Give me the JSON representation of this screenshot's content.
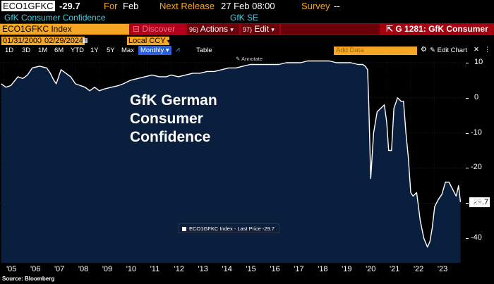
{
  "header": {
    "ticker": "ECO1GFKC",
    "last_value": "-29.7",
    "for_label": "For",
    "for_period": "Feb",
    "next_release_label": "Next Release",
    "next_release_value": "27 Feb 08:00",
    "survey_label": "Survey",
    "survey_value": "--",
    "description": "GfK Consumer Confidence",
    "source": "GfK SE"
  },
  "toolbar": {
    "security_input": "ECO1GFKC Index",
    "discover_label": "Discover",
    "actions_prefix": "96)",
    "actions_label": "Actions",
    "edit_prefix": "97)",
    "edit_label": "Edit",
    "page_title": "G 1281: GfK Consumer"
  },
  "range_bar": {
    "start_date": "01/31/2000",
    "end_date": "02/29/2024",
    "currency": "Local CCY"
  },
  "period_bar": {
    "periods": [
      "1D",
      "3D",
      "1M",
      "6M",
      "YTD",
      "1Y",
      "5Y",
      "Max"
    ],
    "frequency": "Monthly",
    "table_label": "Table",
    "add_data_placeholder": "Add Data",
    "edit_chart_label": "Edit Chart"
  },
  "annotate_label": "Annotate",
  "overlay_title": [
    "GfK German",
    "Consumer",
    "Confidence"
  ],
  "legend_label": "ECO1GFKC Index - Last Price -29.7",
  "source_note": "Source: Bloomberg",
  "colors": {
    "background": "#0a1f3d",
    "line": "#ffffff",
    "accent_orange": "#f5a623",
    "toolbar_red": "#a4000e"
  },
  "chart_data": {
    "type": "area",
    "ylim": [
      -47,
      12
    ],
    "yticks": [
      10,
      0,
      -10,
      -20,
      -30,
      -40
    ],
    "last_value": -29.7,
    "x_tick_labels": [
      "'05",
      "'06",
      "'07",
      "'08",
      "'09",
      "'10",
      "'11",
      "'12",
      "'13",
      "'14",
      "'15",
      "'16",
      "'17",
      "'18",
      "'19",
      "'20",
      "'21",
      "'22",
      "'23"
    ],
    "x_tick_years": [
      2005,
      2006,
      2007,
      2008,
      2009,
      2010,
      2011,
      2012,
      2013,
      2014,
      2015,
      2016,
      2017,
      2018,
      2019,
      2020,
      2021,
      2022,
      2023
    ],
    "x_range": [
      2004.85,
      2024.3
    ],
    "x": [
      2004.9,
      2005.1,
      2005.3,
      2005.6,
      2005.8,
      2006.0,
      2006.2,
      2006.5,
      2006.8,
      2006.95,
      2007.1,
      2007.2,
      2007.4,
      2007.6,
      2007.8,
      2008.0,
      2008.2,
      2008.4,
      2008.6,
      2008.8,
      2009.0,
      2009.2,
      2009.5,
      2009.8,
      2010.0,
      2010.3,
      2010.6,
      2010.9,
      2011.2,
      2011.5,
      2011.8,
      2012.0,
      2012.3,
      2012.6,
      2012.9,
      2013.2,
      2013.5,
      2013.8,
      2014.1,
      2014.4,
      2014.7,
      2015.0,
      2015.3,
      2015.6,
      2015.9,
      2016.2,
      2016.5,
      2016.8,
      2017.1,
      2017.4,
      2017.7,
      2018.0,
      2018.3,
      2018.6,
      2018.9,
      2019.2,
      2019.5,
      2019.8,
      2020.0,
      2020.1,
      2020.2,
      2020.25,
      2020.33,
      2020.45,
      2020.6,
      2020.75,
      2020.9,
      2021.0,
      2021.08,
      2021.2,
      2021.3,
      2021.45,
      2021.6,
      2021.7,
      2021.8,
      2021.9,
      2022.0,
      2022.1,
      2022.25,
      2022.4,
      2022.55,
      2022.7,
      2022.8,
      2022.9,
      2023.0,
      2023.15,
      2023.3,
      2023.45,
      2023.6,
      2023.75,
      2023.9,
      2024.0,
      2024.08
    ],
    "y": [
      4,
      3,
      3.5,
      6,
      5.5,
      6.5,
      8.5,
      9,
      8.5,
      7,
      5,
      4,
      8,
      7,
      6,
      4,
      3.5,
      3,
      2,
      3,
      2,
      2.5,
      3,
      3.5,
      4,
      5,
      5.5,
      6,
      6.5,
      6,
      6,
      6.5,
      6,
      6.5,
      7,
      7,
      7.5,
      7.5,
      8,
      8.5,
      8.5,
      9,
      9.5,
      9.5,
      9.5,
      9.5,
      9.5,
      10,
      10,
      10,
      10.5,
      10.5,
      10.5,
      10.5,
      10,
      10,
      10,
      9.5,
      9.5,
      9,
      8,
      -2,
      -23,
      -10,
      -4,
      -3,
      -2,
      -7,
      -15,
      -15,
      -3,
      0,
      -1,
      -1,
      -10,
      -17,
      -27,
      -28,
      -27,
      -35,
      -40,
      -42.5,
      -41,
      -37,
      -31,
      -29,
      -27.5,
      -24,
      -24,
      -26,
      -28,
      -25,
      -29.7
    ]
  }
}
